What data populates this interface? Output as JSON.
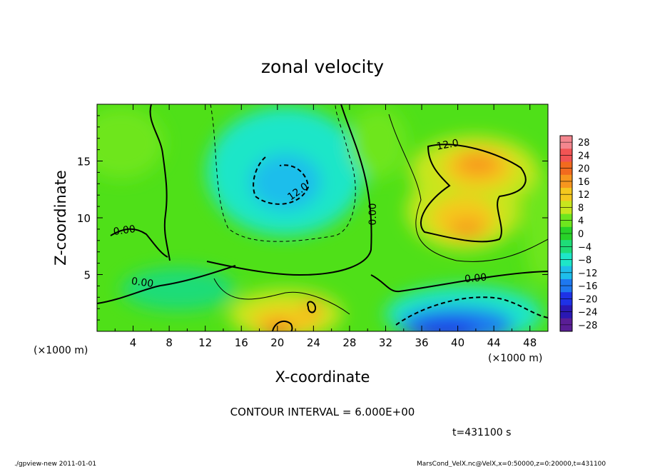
{
  "chart_data": {
    "type": "heatmap",
    "title": "zonal velocity",
    "xlabel": "X-coordinate",
    "ylabel": "Z-coordinate",
    "x_unit": "(×1000 m)",
    "xlim": [
      0,
      50
    ],
    "ylim": [
      0,
      20
    ],
    "x_ticks": [
      "4",
      "8",
      "12",
      "16",
      "20",
      "24",
      "28",
      "32",
      "36",
      "40",
      "44",
      "48"
    ],
    "y_ticks": [
      "5",
      "10",
      "15"
    ],
    "colorbar": {
      "levels": [
        "28",
        "24",
        "20",
        "16",
        "12",
        "8",
        "4",
        "0",
        "−4",
        "−8",
        "−12",
        "−16",
        "−20",
        "−24",
        "−28"
      ],
      "colors": [
        "#f4868e",
        "#f25454",
        "#f26a1e",
        "#f7961e",
        "#f5c81e",
        "#c8e61e",
        "#6ee61e",
        "#28d228",
        "#1edc78",
        "#1ee6c8",
        "#1ebeeb",
        "#1e78f0",
        "#1e32e6",
        "#2a18b4",
        "#5a1e96"
      ]
    },
    "contour_labels": [
      "12.0",
      "12.0",
      "0.00",
      "0.00",
      "0.00",
      "0.00"
    ],
    "contour_interval": "CONTOUR INTERVAL = 6.000E+00",
    "time_label": "t=431100 s",
    "footer_left": "./gpview-new  2011-01-01",
    "footer_right": "MarsCond_VelX.nc@VelX,x=0:50000,z=0:20000,t=431100"
  }
}
